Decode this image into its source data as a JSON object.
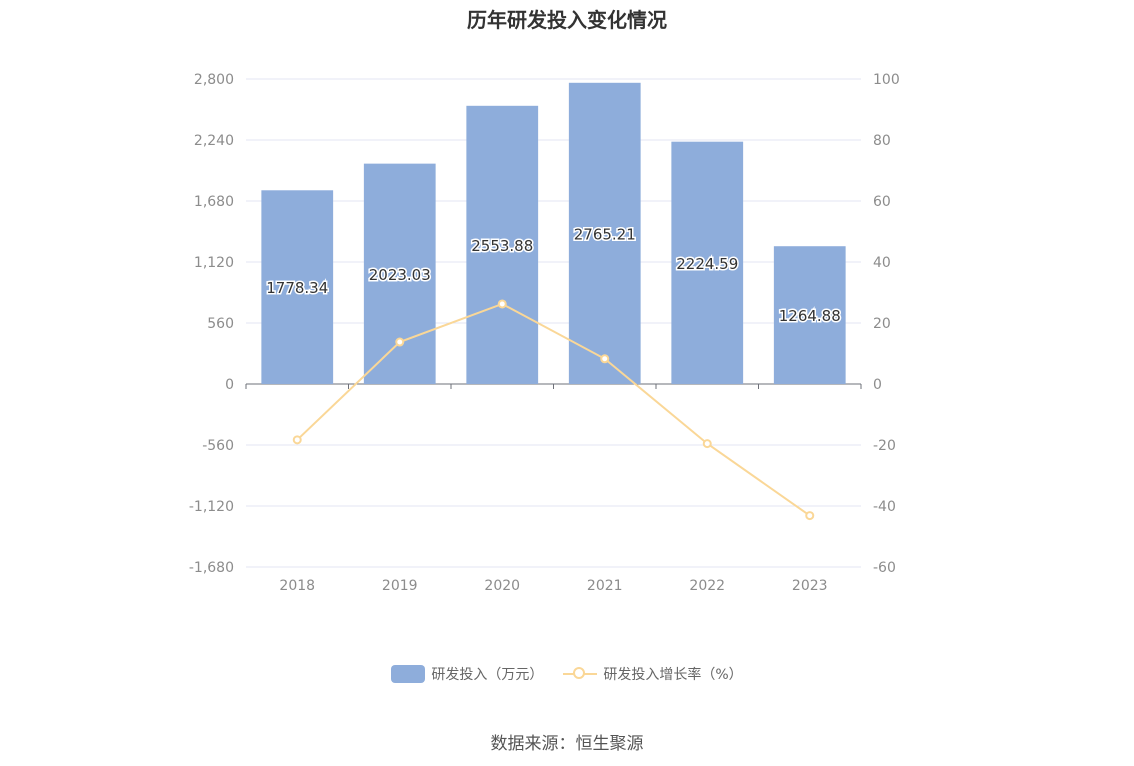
{
  "chart_data": {
    "type": "bar",
    "title": "历年研发投入变化情况",
    "categories": [
      "2018",
      "2019",
      "2020",
      "2021",
      "2022",
      "2023"
    ],
    "series": [
      {
        "name": "研发投入（万元）",
        "type": "bar",
        "axis": "left",
        "color": "#8eaddb",
        "values": [
          1778.34,
          2023.03,
          2553.88,
          2765.21,
          2224.59,
          1264.88
        ],
        "labels": [
          "1778.34",
          "2023.03",
          "2553.88",
          "2765.21",
          "2224.59",
          "1264.88"
        ]
      },
      {
        "name": "研发投入增长率（%）",
        "type": "line",
        "axis": "right",
        "color": "#fad797",
        "values": [
          -18.3,
          13.76,
          26.24,
          8.27,
          -19.55,
          -43.14
        ]
      }
    ],
    "y_left": {
      "ylim": [
        -1680,
        2800
      ],
      "ticks": [
        "2,800",
        "2,240",
        "1,680",
        "1,120",
        "560",
        "0",
        "-560",
        "-1,120",
        "-1,680"
      ],
      "tick_values": [
        2800,
        2240,
        1680,
        1120,
        560,
        0,
        -560,
        -1120,
        -1680
      ]
    },
    "y_right": {
      "ylim": [
        -60,
        100
      ],
      "ticks": [
        "100",
        "80",
        "60",
        "40",
        "20",
        "0",
        "-20",
        "-40",
        "-60"
      ],
      "tick_values": [
        100,
        80,
        60,
        40,
        20,
        0,
        -20,
        -40,
        -60
      ]
    },
    "grid": true,
    "legend_position": "bottom"
  },
  "source": "数据来源：恒生聚源"
}
